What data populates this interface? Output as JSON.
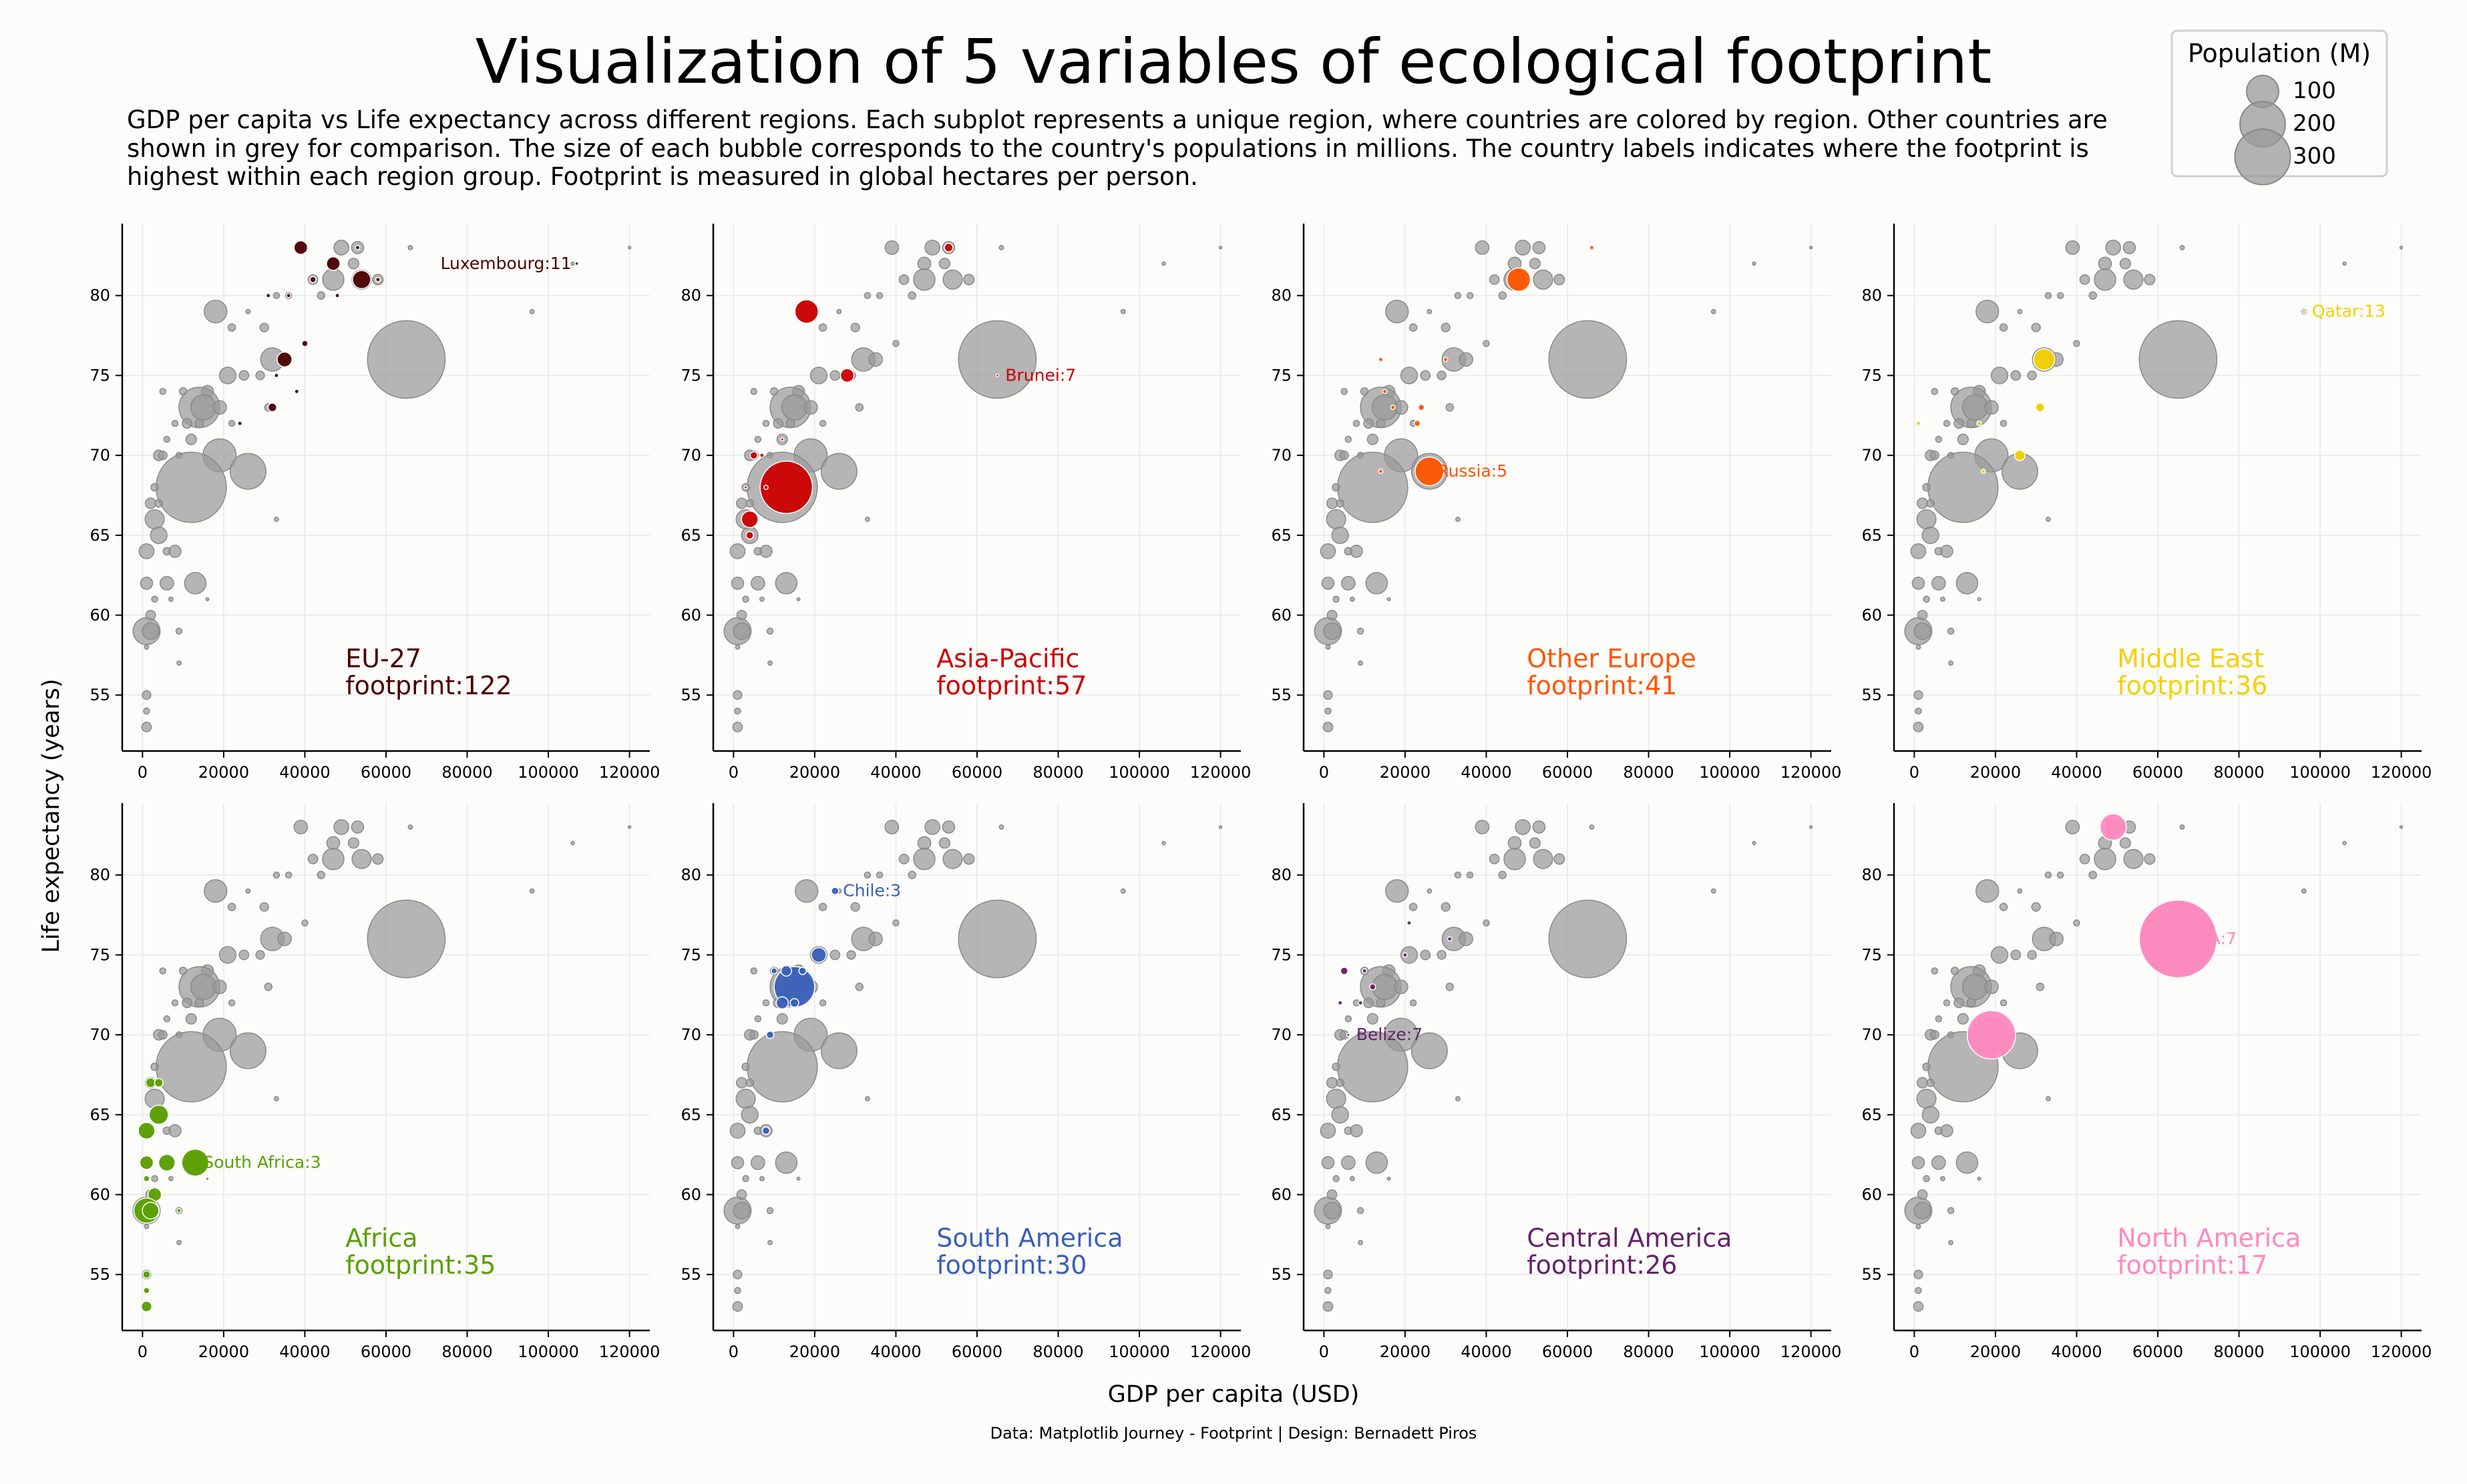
{
  "title": "Visualization of 5 variables of ecological footprint",
  "subtitle_lines": [
    "GDP per capita vs Life expectancy across different regions. Each subplot represents a unique region, where countries are colored by region. Other countries are",
    "shown in grey for comparison. The size of each bubble corresponds to the country's populations in millions. The country labels indicates where the footprint is",
    "highest within each region group. Footprint is measured in global hectares per person."
  ],
  "legend": {
    "title": "Population (M)",
    "labels": [
      "100",
      "200",
      "300"
    ],
    "values": [
      100,
      200,
      300
    ]
  },
  "xlabel": "GDP per capita (USD)",
  "ylabel": "Life expectancy (years)",
  "caption": "Data: Matplotlib Journey - Footprint | Design: Bernadett Piros",
  "colors": {
    "grey": "#9a9a9a",
    "background": "#fcfcfa"
  },
  "chart_data": {
    "type": "scatter",
    "xlim": [
      -5000,
      125000
    ],
    "ylim": [
      51.5,
      84.5
    ],
    "xticks": [
      0,
      20000,
      40000,
      60000,
      80000,
      100000,
      120000
    ],
    "yticks": [
      55,
      60,
      65,
      70,
      75,
      80
    ],
    "grid": true,
    "grey_points": [
      {
        "x": 39000,
        "y": 83,
        "pop": 10
      },
      {
        "x": 49000,
        "y": 83,
        "pop": 12
      },
      {
        "x": 53000,
        "y": 83,
        "pop": 8
      },
      {
        "x": 66000,
        "y": 83,
        "pop": 1
      },
      {
        "x": 47000,
        "y": 82,
        "pop": 9
      },
      {
        "x": 52000,
        "y": 82,
        "pop": 6
      },
      {
        "x": 120000,
        "y": 83,
        "pop": 0.4
      },
      {
        "x": 106000,
        "y": 82,
        "pop": 0.6
      },
      {
        "x": 47000,
        "y": 81,
        "pop": 25
      },
      {
        "x": 54000,
        "y": 81,
        "pop": 20
      },
      {
        "x": 58000,
        "y": 81,
        "pop": 6
      },
      {
        "x": 42000,
        "y": 81,
        "pop": 5
      },
      {
        "x": 36000,
        "y": 80,
        "pop": 2
      },
      {
        "x": 33000,
        "y": 80,
        "pop": 2
      },
      {
        "x": 44000,
        "y": 80,
        "pop": 3
      },
      {
        "x": 18000,
        "y": 79,
        "pop": 28
      },
      {
        "x": 96000,
        "y": 79,
        "pop": 1
      },
      {
        "x": 26000,
        "y": 79,
        "pop": 1
      },
      {
        "x": 22000,
        "y": 78,
        "pop": 3
      },
      {
        "x": 30000,
        "y": 78,
        "pop": 4
      },
      {
        "x": 40000,
        "y": 77,
        "pop": 2
      },
      {
        "x": 32000,
        "y": 76,
        "pop": 30
      },
      {
        "x": 35000,
        "y": 76,
        "pop": 10
      },
      {
        "x": 65000,
        "y": 76,
        "pop": 330
      },
      {
        "x": 21000,
        "y": 75,
        "pop": 15
      },
      {
        "x": 25000,
        "y": 75,
        "pop": 5
      },
      {
        "x": 29000,
        "y": 75,
        "pop": 4
      },
      {
        "x": 16000,
        "y": 74,
        "pop": 8
      },
      {
        "x": 10000,
        "y": 74,
        "pop": 3
      },
      {
        "x": 5000,
        "y": 74,
        "pop": 2
      },
      {
        "x": 14000,
        "y": 73,
        "pop": 90
      },
      {
        "x": 15000,
        "y": 73,
        "pop": 35
      },
      {
        "x": 19000,
        "y": 73,
        "pop": 10
      },
      {
        "x": 11000,
        "y": 72,
        "pop": 5
      },
      {
        "x": 14000,
        "y": 72,
        "pop": 4
      },
      {
        "x": 8000,
        "y": 72,
        "pop": 2
      },
      {
        "x": 22000,
        "y": 72,
        "pop": 2
      },
      {
        "x": 31000,
        "y": 73,
        "pop": 3
      },
      {
        "x": 6000,
        "y": 71,
        "pop": 2
      },
      {
        "x": 12000,
        "y": 71,
        "pop": 6
      },
      {
        "x": 19000,
        "y": 70,
        "pop": 60
      },
      {
        "x": 4000,
        "y": 70,
        "pop": 6
      },
      {
        "x": 5000,
        "y": 70,
        "pop": 4
      },
      {
        "x": 9000,
        "y": 70,
        "pop": 2
      },
      {
        "x": 26000,
        "y": 69,
        "pop": 70
      },
      {
        "x": 12000,
        "y": 68,
        "pop": 270
      },
      {
        "x": 3000,
        "y": 68,
        "pop": 3
      },
      {
        "x": 2000,
        "y": 67,
        "pop": 6
      },
      {
        "x": 4000,
        "y": 67,
        "pop": 3
      },
      {
        "x": 3000,
        "y": 66,
        "pop": 20
      },
      {
        "x": 33000,
        "y": 66,
        "pop": 1
      },
      {
        "x": 4000,
        "y": 65,
        "pop": 15
      },
      {
        "x": 1000,
        "y": 64,
        "pop": 12
      },
      {
        "x": 6000,
        "y": 64,
        "pop": 3
      },
      {
        "x": 8000,
        "y": 64,
        "pop": 8
      },
      {
        "x": 1000,
        "y": 62,
        "pop": 8
      },
      {
        "x": 6000,
        "y": 62,
        "pop": 10
      },
      {
        "x": 13000,
        "y": 62,
        "pop": 25
      },
      {
        "x": 3000,
        "y": 61,
        "pop": 2
      },
      {
        "x": 1000,
        "y": 59,
        "pop": 40
      },
      {
        "x": 2000,
        "y": 59,
        "pop": 15
      },
      {
        "x": 9000,
        "y": 59,
        "pop": 2
      },
      {
        "x": 2000,
        "y": 60,
        "pop": 5
      },
      {
        "x": 16000,
        "y": 61,
        "pop": 0.5
      },
      {
        "x": 9000,
        "y": 57,
        "pop": 1
      },
      {
        "x": 1000,
        "y": 55,
        "pop": 4
      },
      {
        "x": 1000,
        "y": 54,
        "pop": 2
      },
      {
        "x": 1000,
        "y": 53,
        "pop": 5
      },
      {
        "x": 1000,
        "y": 58,
        "pop": 1
      },
      {
        "x": 7000,
        "y": 61,
        "pop": 1
      }
    ],
    "panels": [
      {
        "region": "EU-27",
        "footprint_label": "footprint:122",
        "color": "#4d0000",
        "annotation": "Luxembourg:11",
        "annotation_x": 107000,
        "annotation_y": 82,
        "points": [
          {
            "x": 39000,
            "y": 83,
            "pop": 10
          },
          {
            "x": 47000,
            "y": 82,
            "pop": 10
          },
          {
            "x": 53000,
            "y": 83,
            "pop": 1
          },
          {
            "x": 54000,
            "y": 81,
            "pop": 18
          },
          {
            "x": 58000,
            "y": 81,
            "pop": 1
          },
          {
            "x": 42000,
            "y": 81,
            "pop": 2
          },
          {
            "x": 36000,
            "y": 80,
            "pop": 1
          },
          {
            "x": 31000,
            "y": 80,
            "pop": 1
          },
          {
            "x": 48000,
            "y": 80,
            "pop": 1
          },
          {
            "x": 35000,
            "y": 76,
            "pop": 12
          },
          {
            "x": 40000,
            "y": 77,
            "pop": 2
          },
          {
            "x": 32000,
            "y": 73,
            "pop": 4
          },
          {
            "x": 24000,
            "y": 72,
            "pop": 1
          },
          {
            "x": 33000,
            "y": 75,
            "pop": 1
          },
          {
            "x": 38000,
            "y": 74,
            "pop": 1
          },
          {
            "x": 107000,
            "y": 82,
            "pop": 0.6
          }
        ]
      },
      {
        "region": "Asia-Pacific",
        "footprint_label": "footprint:57",
        "color": "#cc0000",
        "annotation": "Brunei:7",
        "annotation_x": 65000,
        "annotation_y": 75,
        "points": [
          {
            "x": 53000,
            "y": 83,
            "pop": 4
          },
          {
            "x": 18000,
            "y": 79,
            "pop": 30
          },
          {
            "x": 28000,
            "y": 75,
            "pop": 10
          },
          {
            "x": 13000,
            "y": 68,
            "pop": 150
          },
          {
            "x": 4000,
            "y": 66,
            "pop": 15
          },
          {
            "x": 5000,
            "y": 70,
            "pop": 3
          },
          {
            "x": 4000,
            "y": 65,
            "pop": 3
          },
          {
            "x": 8000,
            "y": 68,
            "pop": 1
          },
          {
            "x": 7000,
            "y": 70,
            "pop": 1
          },
          {
            "x": 3000,
            "y": 68,
            "pop": 0.5
          },
          {
            "x": 12000,
            "y": 71,
            "pop": 0.5
          },
          {
            "x": 65000,
            "y": 75,
            "pop": 0.4
          }
        ]
      },
      {
        "region": "Other Europe",
        "footprint_label": "footprint:41",
        "color": "#ff5500",
        "annotation": "Russia:5",
        "annotation_x": 26000,
        "annotation_y": 69,
        "points": [
          {
            "x": 48000,
            "y": 81,
            "pop": 30
          },
          {
            "x": 66000,
            "y": 83,
            "pop": 1
          },
          {
            "x": 26000,
            "y": 69,
            "pop": 45
          },
          {
            "x": 24000,
            "y": 73,
            "pop": 2
          },
          {
            "x": 23000,
            "y": 72,
            "pop": 2
          },
          {
            "x": 17000,
            "y": 73,
            "pop": 1
          },
          {
            "x": 14000,
            "y": 69,
            "pop": 1
          },
          {
            "x": 30000,
            "y": 76,
            "pop": 1
          },
          {
            "x": 14000,
            "y": 76,
            "pop": 1
          },
          {
            "x": 15000,
            "y": 74,
            "pop": 1
          }
        ]
      },
      {
        "region": "Middle East",
        "footprint_label": "footprint:36",
        "color": "#f5d000",
        "annotation": "Qatar:13",
        "annotation_x": 96000,
        "annotation_y": 79,
        "points": [
          {
            "x": 32000,
            "y": 76,
            "pop": 25
          },
          {
            "x": 31000,
            "y": 73,
            "pop": 4
          },
          {
            "x": 26000,
            "y": 70,
            "pop": 6
          },
          {
            "x": 16000,
            "y": 72,
            "pop": 1
          },
          {
            "x": 17000,
            "y": 69,
            "pop": 1
          },
          {
            "x": 1000,
            "y": 72,
            "pop": 1
          },
          {
            "x": 96000,
            "y": 79,
            "pop": 0.5
          }
        ]
      },
      {
        "region": "Africa",
        "footprint_label": "footprint:35",
        "color": "#5aa000",
        "annotation": "South Africa:3",
        "annotation_x": 13000,
        "annotation_y": 62,
        "points": [
          {
            "x": 13000,
            "y": 62,
            "pop": 40
          },
          {
            "x": 4000,
            "y": 65,
            "pop": 20
          },
          {
            "x": 2000,
            "y": 67,
            "pop": 5
          },
          {
            "x": 4000,
            "y": 67,
            "pop": 4
          },
          {
            "x": 1000,
            "y": 64,
            "pop": 15
          },
          {
            "x": 6000,
            "y": 62,
            "pop": 15
          },
          {
            "x": 1000,
            "y": 62,
            "pop": 10
          },
          {
            "x": 3000,
            "y": 60,
            "pop": 10
          },
          {
            "x": 1000,
            "y": 59,
            "pop": 35
          },
          {
            "x": 2000,
            "y": 59,
            "pop": 15
          },
          {
            "x": 1000,
            "y": 55,
            "pop": 3
          },
          {
            "x": 1000,
            "y": 54,
            "pop": 2
          },
          {
            "x": 1000,
            "y": 53,
            "pop": 6
          },
          {
            "x": 1000,
            "y": 61,
            "pop": 2
          },
          {
            "x": 9000,
            "y": 59,
            "pop": 1
          },
          {
            "x": 16000,
            "y": 61,
            "pop": 0.5
          }
        ]
      },
      {
        "region": "South America",
        "footprint_label": "footprint:30",
        "color": "#3a60b8",
        "annotation": "Chile:3",
        "annotation_x": 25000,
        "annotation_y": 79,
        "points": [
          {
            "x": 25000,
            "y": 79,
            "pop": 3
          },
          {
            "x": 15000,
            "y": 73,
            "pop": 90
          },
          {
            "x": 13000,
            "y": 74,
            "pop": 6
          },
          {
            "x": 21000,
            "y": 75,
            "pop": 12
          },
          {
            "x": 12000,
            "y": 72,
            "pop": 8
          },
          {
            "x": 15000,
            "y": 72,
            "pop": 4
          },
          {
            "x": 9000,
            "y": 70,
            "pop": 3
          },
          {
            "x": 8000,
            "y": 64,
            "pop": 3
          },
          {
            "x": 17000,
            "y": 74,
            "pop": 3
          },
          {
            "x": 10000,
            "y": 74,
            "pop": 2
          }
        ]
      },
      {
        "region": "Central America",
        "footprint_label": "footprint:26",
        "color": "#66226a",
        "annotation": "Belize:7",
        "annotation_x": 6000,
        "annotation_y": 70,
        "points": [
          {
            "x": 6000,
            "y": 70,
            "pop": 0.5
          },
          {
            "x": 5000,
            "y": 74,
            "pop": 3
          },
          {
            "x": 10000,
            "y": 74,
            "pop": 1
          },
          {
            "x": 21000,
            "y": 77,
            "pop": 1
          },
          {
            "x": 31000,
            "y": 76,
            "pop": 1
          },
          {
            "x": 20000,
            "y": 75,
            "pop": 1
          },
          {
            "x": 9000,
            "y": 72,
            "pop": 1
          },
          {
            "x": 12000,
            "y": 73,
            "pop": 2
          },
          {
            "x": 4000,
            "y": 72,
            "pop": 1
          }
        ]
      },
      {
        "region": "North America",
        "footprint_label": "footprint:17",
        "color": "#ff88c0",
        "annotation": "USA:7",
        "annotation_x": 65000,
        "annotation_y": 76,
        "points": [
          {
            "x": 65000,
            "y": 76,
            "pop": 330
          },
          {
            "x": 19000,
            "y": 70,
            "pop": 128
          },
          {
            "x": 49000,
            "y": 83,
            "pop": 38
          }
        ]
      }
    ]
  }
}
